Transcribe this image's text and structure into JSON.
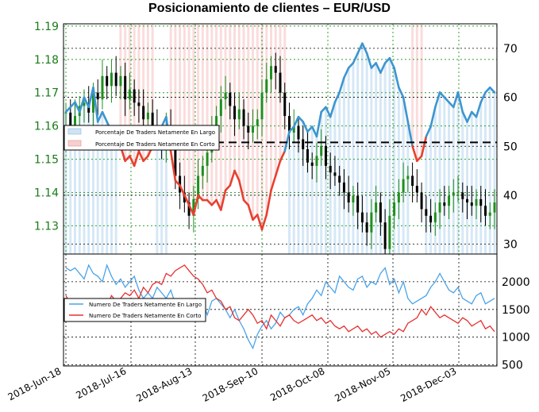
{
  "chart_data": [
    {
      "type": "candlestick+line",
      "title": "Posicionamiento de clientes – EUR/USD",
      "left_axis_ticks": [
        "1.19",
        "1.18",
        "1.17",
        "1.16",
        "1.15",
        "1.14",
        "1.13"
      ],
      "left_axis_values": [
        1.19,
        1.18,
        1.17,
        1.16,
        1.15,
        1.14,
        1.13
      ],
      "ylim_left": [
        1.1215,
        1.1907
      ],
      "right_axis_ticks": [
        "70",
        "60",
        "50",
        "40",
        "30"
      ],
      "right_axis_values": [
        70,
        60,
        50,
        40,
        30
      ],
      "ylim_right": [
        28,
        75
      ],
      "reference_line": 50.8,
      "legend": {
        "placement": "middle-left",
        "items": [
          {
            "label": "Porcentaje De Traders Netamente En Largo",
            "color": "#cfe3f5"
          },
          {
            "label": "Porcentaje De Traders Netamente En Corto",
            "color": "#f7cfcf"
          }
        ]
      },
      "series_note": "Net long percentage; line blue when above 50, red when below.",
      "net_long_pct": [
        57,
        58,
        59,
        57,
        60,
        58,
        62,
        55,
        57,
        55,
        53,
        52,
        50,
        47,
        48,
        46,
        49,
        47,
        48,
        50,
        52,
        54,
        56,
        49,
        43,
        42,
        40,
        38,
        36,
        40,
        39,
        39,
        38,
        39,
        37,
        41,
        42,
        45,
        43,
        39,
        38,
        35,
        36,
        33,
        36,
        41,
        44,
        47,
        49,
        53,
        54,
        56,
        55,
        53,
        54,
        52,
        57,
        58,
        56,
        59,
        61,
        64,
        66,
        67,
        69,
        71,
        69,
        66,
        67,
        65,
        67,
        68,
        66,
        62,
        60,
        55,
        50,
        47,
        48,
        52,
        54,
        58,
        61,
        60,
        59,
        58,
        61,
        57,
        55,
        57,
        56,
        59,
        61,
        62,
        61
      ],
      "price_close": [
        1.164,
        1.16,
        1.163,
        1.166,
        1.167,
        1.164,
        1.17,
        1.168,
        1.175,
        1.172,
        1.176,
        1.172,
        1.175,
        1.168,
        1.171,
        1.167,
        1.166,
        1.162,
        1.164,
        1.16,
        1.157,
        1.154,
        1.16,
        1.157,
        1.145,
        1.14,
        1.137,
        1.133,
        1.138,
        1.145,
        1.148,
        1.152,
        1.158,
        1.163,
        1.168,
        1.17,
        1.166,
        1.162,
        1.165,
        1.16,
        1.158,
        1.16,
        1.162,
        1.17,
        1.174,
        1.178,
        1.176,
        1.17,
        1.163,
        1.158,
        1.16,
        1.156,
        1.153,
        1.149,
        1.148,
        1.151,
        1.154,
        1.148,
        1.146,
        1.145,
        1.143,
        1.14,
        1.137,
        1.139,
        1.134,
        1.131,
        1.128,
        1.134,
        1.137,
        1.131,
        1.123,
        1.133,
        1.137,
        1.14,
        1.144,
        1.145,
        1.142,
        1.14,
        1.135,
        1.133,
        1.131,
        1.134,
        1.137,
        1.136,
        1.139,
        1.14,
        1.14,
        1.138,
        1.137,
        1.136,
        1.138,
        1.136,
        1.133,
        1.134,
        1.137
      ],
      "x_tick_labels": [
        "2018-Jun-18",
        "2018-Jul-16",
        "2018-Aug-13",
        "2018-Sep-10",
        "2018-Oct-08",
        "2018-Nov-05",
        "2018-Dec-03"
      ]
    },
    {
      "type": "line",
      "right_axis_ticks": [
        "2000",
        "1500",
        "1000",
        "500"
      ],
      "right_axis_values": [
        2000,
        1500,
        1000,
        500
      ],
      "ylim": [
        480,
        2500
      ],
      "legend": {
        "placement": "middle-left",
        "items": [
          {
            "label": "Numero De Traders Netamente En Largo",
            "color": "#4aa3e8"
          },
          {
            "label": "Numero De Traders Netamente En Corto",
            "color": "#e83030"
          }
        ]
      },
      "series": [
        {
          "name": "Numero De Traders Netamente En Largo",
          "color": "#4aa3e8",
          "values": [
            2250,
            2200,
            2250,
            2150,
            2050,
            2300,
            2150,
            2100,
            2000,
            2300,
            2100,
            1950,
            2050,
            1900,
            2000,
            2100,
            1850,
            1700,
            1800,
            1700,
            1900,
            1800,
            1700,
            1850,
            1600,
            1450,
            1550,
            1400,
            1300,
            1500,
            1650,
            1400,
            1650,
            1700,
            1600,
            1500,
            1350,
            1500,
            1300,
            1150,
            950,
            800,
            1050,
            1200,
            1300,
            1150,
            1250,
            1450,
            1350,
            1400,
            1500,
            1550,
            1400,
            1600,
            1700,
            1850,
            1750,
            2000,
            1900,
            1800,
            2100,
            2000,
            1900,
            1850,
            2050,
            2100,
            1900,
            2000,
            1950,
            2150,
            2250,
            1950,
            2050,
            1800,
            2000,
            1700,
            1600,
            1650,
            1700,
            1750,
            1900,
            2000,
            2150,
            2000,
            1850,
            1800,
            1900,
            1700,
            1650,
            1600,
            1750,
            1800,
            1600,
            1650,
            1700
          ]
        },
        {
          "name": "Numero De Traders Netamente En Corto",
          "color": "#e83030",
          "values": [
            1750,
            1600,
            1550,
            1650,
            1550,
            1600,
            1500,
            1600,
            1650,
            1550,
            1750,
            1650,
            1700,
            1800,
            1750,
            1850,
            1700,
            1900,
            1800,
            1950,
            2000,
            1950,
            2150,
            2100,
            2200,
            2250,
            2300,
            2200,
            2100,
            2050,
            1950,
            1800,
            1850,
            1700,
            1650,
            1500,
            1550,
            1350,
            1300,
            1400,
            1500,
            1400,
            1250,
            1300,
            1150,
            1400,
            1300,
            1200,
            1350,
            1400,
            1300,
            1250,
            1300,
            1350,
            1400,
            1300,
            1350,
            1250,
            1300,
            1200,
            1150,
            1200,
            1100,
            1150,
            1200,
            1100,
            1150,
            1050,
            1100,
            1000,
            1050,
            1100,
            1050,
            1150,
            1100,
            1250,
            1300,
            1350,
            1500,
            1400,
            1550,
            1450,
            1350,
            1400,
            1350,
            1300,
            1250,
            1350,
            1300,
            1200,
            1250,
            1300,
            1150,
            1200,
            1100
          ]
        }
      ],
      "x_tick_labels": [
        "2018-Jun-18",
        "2018-Jul-16",
        "2018-Aug-13",
        "2018-Sep-10",
        "2018-Oct-08",
        "2018-Nov-05",
        "2018-Dec-03"
      ]
    }
  ]
}
